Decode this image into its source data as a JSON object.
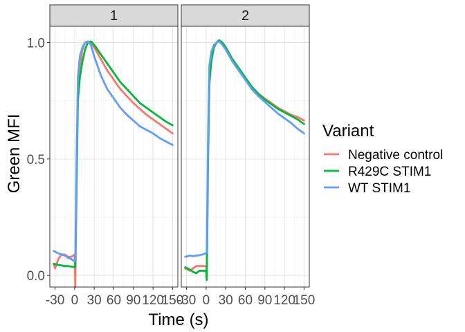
{
  "chart_data": {
    "type": "line",
    "xlabel": "Time (s)",
    "ylabel": "Green MFI",
    "xlim": [
      -38,
      158
    ],
    "ylim": [
      -0.05,
      1.07
    ],
    "x_ticks": [
      -30,
      0,
      30,
      60,
      90,
      120,
      150
    ],
    "x_tick_labels": [
      "-30",
      "0",
      "30",
      "60",
      "90",
      "120",
      "150"
    ],
    "y_ticks": [
      0.0,
      0.5,
      1.0
    ],
    "y_tick_labels": [
      "0.0",
      "0.5",
      "1.0"
    ],
    "grid": true,
    "legend": {
      "title": "Variant",
      "position": "right",
      "entries": [
        {
          "name": "Negative control",
          "color": "#F8766D"
        },
        {
          "name": "R429C STIM1",
          "color": "#00BA38"
        },
        {
          "name": "WT STIM1",
          "color": "#619CFF"
        }
      ]
    },
    "facets": [
      {
        "label": "1",
        "series": [
          {
            "name": "Negative control",
            "color": "#F8766D",
            "x": [
              -32,
              -30,
              -25,
              -20,
              -15,
              -10,
              -5,
              0,
              1,
              3,
              5,
              8,
              12,
              16,
              20,
              25,
              30,
              40,
              50,
              60,
              70,
              80,
              90,
              100,
              110,
              120,
              130,
              140,
              150
            ],
            "y": [
              0.05,
              0.03,
              0.07,
              0.09,
              0.09,
              0.08,
              0.08,
              0.09,
              -0.05,
              0.4,
              0.8,
              0.9,
              0.97,
              1.0,
              1.005,
              1.0,
              0.98,
              0.93,
              0.88,
              0.84,
              0.8,
              0.77,
              0.74,
              0.715,
              0.69,
              0.67,
              0.65,
              0.63,
              0.61
            ]
          },
          {
            "name": "R429C STIM1",
            "color": "#00BA38",
            "x": [
              -32,
              -25,
              -20,
              -15,
              -10,
              -5,
              0,
              1,
              3,
              5,
              8,
              12,
              16,
              20,
              25,
              30,
              40,
              50,
              60,
              70,
              80,
              90,
              100,
              110,
              120,
              130,
              140,
              150
            ],
            "y": [
              0.05,
              0.045,
              0.043,
              0.04,
              0.04,
              0.038,
              0.035,
              0.04,
              0.4,
              0.75,
              0.85,
              0.92,
              0.97,
              1.0,
              1.005,
              0.99,
              0.95,
              0.91,
              0.87,
              0.83,
              0.8,
              0.77,
              0.74,
              0.72,
              0.7,
              0.68,
              0.66,
              0.645
            ]
          },
          {
            "name": "WT STIM1",
            "color": "#619CFF",
            "x": [
              -32,
              -25,
              -20,
              -15,
              -10,
              -5,
              0,
              1,
              3,
              5,
              8,
              12,
              16,
              20,
              25,
              30,
              40,
              50,
              60,
              70,
              80,
              90,
              100,
              110,
              120,
              130,
              140,
              150
            ],
            "y": [
              0.105,
              0.095,
              0.09,
              0.085,
              0.075,
              0.07,
              0.06,
              0.07,
              0.5,
              0.85,
              0.94,
              0.98,
              1.0,
              1.005,
              0.99,
              0.94,
              0.86,
              0.8,
              0.76,
              0.72,
              0.69,
              0.665,
              0.64,
              0.625,
              0.61,
              0.59,
              0.575,
              0.56
            ]
          }
        ]
      },
      {
        "label": "2",
        "series": [
          {
            "name": "Negative control",
            "color": "#F8766D",
            "x": [
              -32,
              -25,
              -20,
              -15,
              -10,
              -5,
              0,
              1,
              3,
              5,
              8,
              12,
              16,
              20,
              25,
              30,
              40,
              50,
              60,
              70,
              80,
              90,
              100,
              110,
              120,
              130,
              140,
              150
            ],
            "y": [
              0.03,
              0.02,
              0.03,
              0.04,
              0.04,
              0.04,
              0.04,
              0.0,
              0.55,
              0.85,
              0.93,
              0.98,
              1.0,
              1.01,
              1.0,
              0.98,
              0.93,
              0.89,
              0.85,
              0.81,
              0.78,
              0.76,
              0.74,
              0.72,
              0.705,
              0.69,
              0.68,
              0.665
            ]
          },
          {
            "name": "R429C STIM1",
            "color": "#00BA38",
            "x": [
              -32,
              -25,
              -20,
              -15,
              -10,
              -5,
              0,
              1,
              3,
              5,
              8,
              12,
              16,
              20,
              25,
              30,
              40,
              50,
              60,
              70,
              80,
              90,
              100,
              110,
              120,
              130,
              140,
              150
            ],
            "y": [
              0.035,
              0.025,
              0.015,
              0.01,
              0.02,
              0.02,
              0.02,
              -0.02,
              0.5,
              0.82,
              0.92,
              0.98,
              1.0,
              1.01,
              1.0,
              0.98,
              0.93,
              0.89,
              0.85,
              0.81,
              0.78,
              0.755,
              0.735,
              0.715,
              0.7,
              0.685,
              0.67,
              0.65
            ]
          },
          {
            "name": "WT STIM1",
            "color": "#619CFF",
            "x": [
              -32,
              -25,
              -20,
              -15,
              -10,
              -5,
              0,
              1,
              3,
              5,
              8,
              12,
              16,
              20,
              25,
              30,
              40,
              50,
              60,
              70,
              80,
              90,
              100,
              110,
              120,
              130,
              140,
              150
            ],
            "y": [
              0.08,
              0.085,
              0.083,
              0.085,
              0.087,
              0.09,
              0.095,
              0.1,
              0.6,
              0.9,
              0.96,
              0.99,
              1.0,
              1.005,
              0.99,
              0.97,
              0.92,
              0.88,
              0.84,
              0.8,
              0.77,
              0.745,
              0.72,
              0.695,
              0.675,
              0.655,
              0.63,
              0.61
            ]
          }
        ]
      }
    ]
  }
}
